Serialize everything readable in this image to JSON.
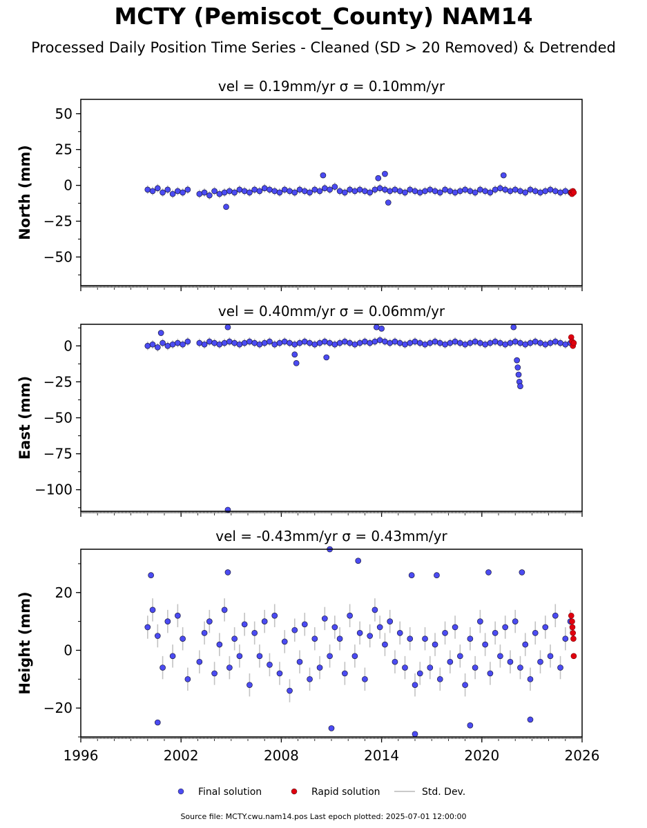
{
  "title": "MCTY (Pemiscot_County) NAM14",
  "subtitle": "Processed Daily Position Time Series - Cleaned (SD > 20 Removed) & Detrended",
  "footer": "Source file: MCTY.cwu.nam14.pos  Last epoch plotted: 2025-07-01 12:00:00",
  "colors": {
    "final": "#4b4bf2",
    "final_edge": "#1a1a40",
    "rapid": "#e0000f",
    "std": "#b8b8b8",
    "axis": "#000000"
  },
  "legend": {
    "placement": "bottom-center",
    "items": [
      {
        "label": "Final solution",
        "kind": "marker",
        "color": "#4b4bf2"
      },
      {
        "label": "Rapid solution",
        "kind": "marker",
        "color": "#e0000f"
      },
      {
        "label": "Std. Dev.",
        "kind": "line",
        "color": "#b8b8b8"
      }
    ]
  },
  "chart_data": [
    {
      "type": "scatter",
      "title": "vel = 0.19mm/yr   σ = 0.10mm/yr",
      "velocity": "0.19mm/yr",
      "sigma": "0.10mm/yr",
      "ylabel": "North (mm)",
      "xlabel": "",
      "xlim": [
        1996,
        2026
      ],
      "ylim": [
        -70,
        60
      ],
      "yticks": [
        50,
        25,
        0,
        -25,
        -50
      ],
      "ytick_labels": [
        "50",
        "25",
        "0",
        "−25",
        "−50"
      ],
      "xticks": [
        1996,
        2002,
        2008,
        2014,
        2020,
        2026
      ],
      "grid": false,
      "final_series": {
        "name": "Final solution",
        "x": [
          2000.0,
          2000.3,
          2000.6,
          2000.9,
          2001.2,
          2001.5,
          2001.8,
          2002.1,
          2002.4,
          2003.1,
          2003.4,
          2003.7,
          2004.0,
          2004.3,
          2004.6,
          2004.9,
          2005.2,
          2005.5,
          2005.8,
          2006.1,
          2006.4,
          2006.7,
          2007.0,
          2007.3,
          2007.6,
          2007.9,
          2008.2,
          2008.5,
          2008.8,
          2009.1,
          2009.4,
          2009.7,
          2010.0,
          2010.3,
          2010.6,
          2010.9,
          2011.2,
          2011.5,
          2011.8,
          2012.1,
          2012.4,
          2012.7,
          2013.0,
          2013.3,
          2013.6,
          2013.9,
          2014.2,
          2014.5,
          2014.8,
          2015.1,
          2015.4,
          2015.7,
          2016.0,
          2016.3,
          2016.6,
          2016.9,
          2017.2,
          2017.5,
          2017.8,
          2018.1,
          2018.4,
          2018.7,
          2019.0,
          2019.3,
          2019.6,
          2019.9,
          2020.2,
          2020.5,
          2020.8,
          2021.1,
          2021.4,
          2021.7,
          2022.0,
          2022.3,
          2022.6,
          2022.9,
          2023.2,
          2023.5,
          2023.8,
          2024.1,
          2024.4,
          2024.7,
          2025.0,
          2025.3
        ],
        "y": [
          -3,
          -4,
          -2,
          -5,
          -3,
          -6,
          -4,
          -5,
          -3,
          -6,
          -5,
          -7,
          -4,
          -6,
          -5,
          -4,
          -5,
          -3,
          -4,
          -5,
          -3,
          -4,
          -2,
          -3,
          -4,
          -5,
          -3,
          -4,
          -5,
          -3,
          -4,
          -5,
          -3,
          -4,
          -2,
          -3,
          -1,
          -4,
          -5,
          -3,
          -4,
          -3,
          -4,
          -5,
          -3,
          -2,
          -3,
          -4,
          -3,
          -4,
          -5,
          -3,
          -4,
          -5,
          -4,
          -3,
          -4,
          -5,
          -3,
          -4,
          -5,
          -4,
          -3,
          -4,
          -5,
          -3,
          -4,
          -5,
          -3,
          -2,
          -3,
          -4,
          -3,
          -4,
          -5,
          -3,
          -4,
          -5,
          -4,
          -3,
          -4,
          -5,
          -4,
          -5
        ],
        "sd": [
          3,
          3,
          3,
          3,
          3,
          3,
          3,
          3,
          3,
          3,
          3,
          3,
          3,
          3,
          3,
          3,
          3,
          3,
          3,
          3,
          3,
          3,
          3,
          3,
          3,
          3,
          3,
          3,
          3,
          3,
          3,
          3,
          3,
          3,
          3,
          3,
          3,
          3,
          3,
          3,
          3,
          3,
          3,
          3,
          3,
          3,
          3,
          3,
          3,
          3,
          3,
          3,
          3,
          3,
          3,
          3,
          3,
          3,
          3,
          3,
          3,
          3,
          3,
          3,
          3,
          3,
          3,
          3,
          3,
          3,
          3,
          3,
          3,
          3,
          3,
          3,
          3,
          3,
          3,
          3,
          3,
          3,
          3,
          3
        ]
      },
      "outliers": {
        "x": [
          2004.7,
          2010.5,
          2013.8,
          2014.2,
          2014.4,
          2021.3
        ],
        "y": [
          -15,
          7,
          5,
          8,
          -12,
          7
        ]
      },
      "rapid_series": {
        "name": "Rapid solution",
        "x": [
          2025.35,
          2025.4,
          2025.45,
          2025.5
        ],
        "y": [
          -5,
          -6,
          -4,
          -5
        ]
      }
    },
    {
      "type": "scatter",
      "title": "vel = 0.40mm/yr   σ = 0.06mm/yr",
      "velocity": "0.40mm/yr",
      "sigma": "0.06mm/yr",
      "ylabel": "East (mm)",
      "xlabel": "",
      "xlim": [
        1996,
        2026
      ],
      "ylim": [
        -115,
        15
      ],
      "yticks": [
        0,
        -25,
        -50,
        -75,
        -100
      ],
      "ytick_labels": [
        "0",
        "−25",
        "−50",
        "−75",
        "−100"
      ],
      "xticks": [
        1996,
        2002,
        2008,
        2014,
        2020,
        2026
      ],
      "grid": false,
      "final_series": {
        "name": "Final solution",
        "x": [
          2000.0,
          2000.3,
          2000.6,
          2000.9,
          2001.2,
          2001.5,
          2001.8,
          2002.1,
          2002.4,
          2003.1,
          2003.4,
          2003.7,
          2004.0,
          2004.3,
          2004.6,
          2004.9,
          2005.2,
          2005.5,
          2005.8,
          2006.1,
          2006.4,
          2006.7,
          2007.0,
          2007.3,
          2007.6,
          2007.9,
          2008.2,
          2008.5,
          2008.8,
          2009.1,
          2009.4,
          2009.7,
          2010.0,
          2010.3,
          2010.6,
          2010.9,
          2011.2,
          2011.5,
          2011.8,
          2012.1,
          2012.4,
          2012.7,
          2013.0,
          2013.3,
          2013.6,
          2013.9,
          2014.2,
          2014.5,
          2014.8,
          2015.1,
          2015.4,
          2015.7,
          2016.0,
          2016.3,
          2016.6,
          2016.9,
          2017.2,
          2017.5,
          2017.8,
          2018.1,
          2018.4,
          2018.7,
          2019.0,
          2019.3,
          2019.6,
          2019.9,
          2020.2,
          2020.5,
          2020.8,
          2021.1,
          2021.4,
          2021.7,
          2022.0,
          2022.3,
          2022.6,
          2022.9,
          2023.2,
          2023.5,
          2023.8,
          2024.1,
          2024.4,
          2024.7,
          2025.0,
          2025.3
        ],
        "y": [
          0,
          1,
          -1,
          2,
          0,
          1,
          2,
          1,
          3,
          2,
          1,
          3,
          2,
          1,
          2,
          3,
          2,
          1,
          2,
          3,
          2,
          1,
          2,
          3,
          1,
          2,
          3,
          2,
          1,
          2,
          3,
          2,
          1,
          2,
          3,
          2,
          1,
          2,
          3,
          2,
          1,
          2,
          3,
          2,
          3,
          4,
          3,
          2,
          3,
          2,
          1,
          2,
          3,
          2,
          1,
          2,
          3,
          2,
          1,
          2,
          3,
          2,
          1,
          2,
          3,
          2,
          1,
          2,
          3,
          2,
          1,
          2,
          3,
          2,
          1,
          2,
          3,
          2,
          1,
          2,
          3,
          2,
          1,
          2
        ],
        "sd": [
          3,
          3,
          3,
          3,
          3,
          3,
          3,
          3,
          3,
          3,
          3,
          3,
          3,
          3,
          3,
          3,
          3,
          3,
          3,
          3,
          3,
          3,
          3,
          3,
          3,
          3,
          3,
          3,
          3,
          3,
          3,
          3,
          3,
          3,
          3,
          3,
          3,
          3,
          3,
          3,
          3,
          3,
          3,
          3,
          3,
          3,
          3,
          3,
          3,
          3,
          3,
          3,
          3,
          3,
          3,
          3,
          3,
          3,
          3,
          3,
          3,
          3,
          3,
          3,
          3,
          3,
          3,
          3,
          3,
          3,
          3,
          3,
          3,
          3,
          3,
          3,
          3,
          3,
          3,
          3,
          3,
          3,
          3,
          3
        ]
      },
      "outliers": {
        "x": [
          2000.8,
          2004.8,
          2004.8,
          2008.8,
          2008.9,
          2010.7,
          2013.7,
          2014.0,
          2021.9,
          2022.1,
          2022.15,
          2022.2,
          2022.25,
          2022.3
        ],
        "y": [
          9,
          13,
          -114,
          -6,
          -12,
          -8,
          13,
          12,
          13,
          -10,
          -15,
          -20,
          -25,
          -28
        ]
      },
      "rapid_series": {
        "name": "Rapid solution",
        "x": [
          2025.35,
          2025.4,
          2025.45,
          2025.5
        ],
        "y": [
          6,
          3,
          0,
          2
        ]
      }
    },
    {
      "type": "scatter",
      "title": "vel = -0.43mm/yr   σ = 0.43mm/yr",
      "velocity": "-0.43mm/yr",
      "sigma": "0.43mm/yr",
      "ylabel": "Height (mm)",
      "xlabel": "",
      "xlim": [
        1996,
        2026
      ],
      "ylim": [
        -30,
        35
      ],
      "yticks": [
        20,
        0,
        -20
      ],
      "ytick_labels": [
        "20",
        "0",
        "−20"
      ],
      "xticks": [
        1996,
        2002,
        2008,
        2014,
        2020,
        2026
      ],
      "xtick_labels": [
        "1996",
        "2002",
        "2008",
        "2014",
        "2020",
        "2026"
      ],
      "grid": false,
      "final_series": {
        "name": "Final solution",
        "x": [
          2000.0,
          2000.3,
          2000.6,
          2000.9,
          2001.2,
          2001.5,
          2001.8,
          2002.1,
          2002.4,
          2003.1,
          2003.4,
          2003.7,
          2004.0,
          2004.3,
          2004.6,
          2004.9,
          2005.2,
          2005.5,
          2005.8,
          2006.1,
          2006.4,
          2006.7,
          2007.0,
          2007.3,
          2007.6,
          2007.9,
          2008.2,
          2008.5,
          2008.8,
          2009.1,
          2009.4,
          2009.7,
          2010.0,
          2010.3,
          2010.6,
          2010.9,
          2011.2,
          2011.5,
          2011.8,
          2012.1,
          2012.4,
          2012.7,
          2013.0,
          2013.3,
          2013.6,
          2013.9,
          2014.2,
          2014.5,
          2014.8,
          2015.1,
          2015.4,
          2015.7,
          2016.0,
          2016.3,
          2016.6,
          2016.9,
          2017.2,
          2017.5,
          2017.8,
          2018.1,
          2018.4,
          2018.7,
          2019.0,
          2019.3,
          2019.6,
          2019.9,
          2020.2,
          2020.5,
          2020.8,
          2021.1,
          2021.4,
          2021.7,
          2022.0,
          2022.3,
          2022.6,
          2022.9,
          2023.2,
          2023.5,
          2023.8,
          2024.1,
          2024.4,
          2024.7,
          2025.0,
          2025.3
        ],
        "y": [
          8,
          14,
          5,
          -6,
          10,
          -2,
          12,
          4,
          -10,
          -4,
          6,
          10,
          -8,
          2,
          14,
          -6,
          4,
          -2,
          9,
          -12,
          6,
          -2,
          10,
          -5,
          12,
          -8,
          3,
          -14,
          7,
          -4,
          9,
          -10,
          4,
          -6,
          11,
          -2,
          8,
          4,
          -8,
          12,
          -2,
          6,
          -10,
          5,
          14,
          8,
          2,
          10,
          -4,
          6,
          -6,
          4,
          -12,
          -8,
          4,
          -6,
          2,
          -10,
          6,
          -4,
          8,
          -2,
          -12,
          4,
          -6,
          10,
          2,
          -8,
          6,
          -2,
          8,
          -4,
          10,
          -6,
          2,
          -10,
          6,
          -4,
          8,
          -2,
          12,
          -6,
          4,
          10
        ],
        "sd": [
          4,
          4,
          4,
          4,
          4,
          4,
          4,
          4,
          4,
          4,
          4,
          4,
          4,
          4,
          4,
          4,
          4,
          4,
          4,
          4,
          4,
          4,
          4,
          4,
          4,
          4,
          4,
          4,
          4,
          4,
          4,
          4,
          4,
          4,
          4,
          4,
          4,
          4,
          4,
          4,
          4,
          4,
          4,
          4,
          4,
          4,
          4,
          4,
          4,
          4,
          4,
          4,
          4,
          4,
          4,
          4,
          4,
          4,
          4,
          4,
          4,
          4,
          4,
          4,
          4,
          4,
          4,
          4,
          4,
          4,
          4,
          4,
          4,
          4,
          4,
          4,
          4,
          4,
          4,
          4,
          4,
          4,
          4,
          4
        ]
      },
      "outliers": {
        "x": [
          2000.2,
          2000.6,
          2004.8,
          2010.9,
          2011.0,
          2012.6,
          2015.8,
          2016.0,
          2017.3,
          2019.3,
          2020.4,
          2022.4,
          2022.9
        ],
        "y": [
          26,
          -25,
          27,
          35,
          -27,
          31,
          26,
          -29,
          26,
          -26,
          27,
          27,
          -24
        ]
      },
      "rapid_series": {
        "name": "Rapid solution",
        "x": [
          2025.35,
          2025.4,
          2025.42,
          2025.45,
          2025.48,
          2025.5
        ],
        "y": [
          12,
          10,
          8,
          6,
          4,
          -2
        ]
      }
    }
  ]
}
